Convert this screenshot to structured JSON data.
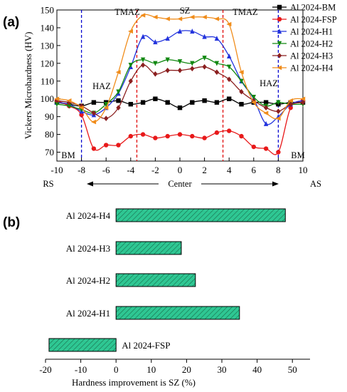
{
  "chart_data": [
    {
      "type": "line",
      "panel_label": "(a)",
      "xlabel": "",
      "ylabel": "Vickers Microhardness (HV)",
      "xlim": [
        -10,
        10
      ],
      "ylim": [
        65,
        150
      ],
      "x_ticks": [
        -10,
        -8,
        -6,
        -4,
        -2,
        0,
        2,
        4,
        6,
        8,
        10
      ],
      "y_ticks": [
        70,
        80,
        90,
        100,
        110,
        120,
        130,
        140,
        150
      ],
      "grid": false,
      "legend_placement": "top-right",
      "zone_lines": [
        {
          "x": -8,
          "color": "#0000d0"
        },
        {
          "x": -3.5,
          "color": "#e00000"
        },
        {
          "x": 3.5,
          "color": "#e00000"
        },
        {
          "x": 8,
          "color": "#0000d0"
        }
      ],
      "annotations": {
        "sz": "SZ",
        "tmaz_left": "TMAZ",
        "tmaz_right": "TMAZ",
        "haz_left": "HAZ",
        "haz_right": "HAZ",
        "bm_left": "BM",
        "bm_right": "BM",
        "rs": "RS",
        "as": "AS",
        "center": "Center"
      },
      "series": [
        {
          "name": "Al 2024-BM",
          "color": "#000000",
          "marker": "square",
          "x": [
            -10,
            -9,
            -8,
            -7,
            -6,
            -5,
            -4,
            -3,
            -2,
            -1,
            0,
            1,
            2,
            3,
            4,
            5,
            6,
            7,
            8,
            9,
            10
          ],
          "y": [
            98,
            97,
            96,
            98,
            98,
            99,
            97,
            98,
            100,
            98,
            95,
            98,
            99,
            98,
            100,
            97,
            98,
            98,
            97,
            98,
            98
          ]
        },
        {
          "name": "Al 2024-FSP",
          "color": "#e8191a",
          "marker": "circle",
          "x": [
            -10,
            -9,
            -8,
            -7,
            -6,
            -5,
            -4,
            -3,
            -2,
            -1,
            0,
            1,
            2,
            3,
            4,
            5,
            6,
            7,
            8,
            9,
            10
          ],
          "y": [
            99,
            96,
            91,
            72,
            74,
            74,
            79,
            80,
            78,
            79,
            80,
            79,
            78,
            81,
            82,
            79,
            73,
            72,
            70,
            95,
            99
          ]
        },
        {
          "name": "Al 2024-H1",
          "color": "#2233dd",
          "marker": "triangle-up",
          "x": [
            -10,
            -9,
            -8,
            -7,
            -6,
            -5,
            -4,
            -3,
            -2,
            -1,
            0,
            1,
            2,
            3,
            4,
            5,
            6,
            7,
            8,
            9,
            10
          ],
          "y": [
            98,
            97,
            93,
            91,
            95,
            103,
            118,
            135,
            132,
            134,
            138,
            138,
            135,
            134,
            124,
            110,
            100,
            86,
            90,
            97,
            99
          ]
        },
        {
          "name": "Al 2024-H2",
          "color": "#118811",
          "marker": "triangle-down",
          "x": [
            -10,
            -9,
            -8,
            -7,
            -6,
            -5,
            -4,
            -3,
            -2,
            -1,
            0,
            1,
            2,
            3,
            4,
            5,
            6,
            7,
            8,
            9,
            10
          ],
          "y": [
            97,
            96,
            94,
            92,
            97,
            104,
            119,
            122,
            120,
            122,
            121,
            120,
            123,
            120,
            118,
            110,
            101,
            96,
            98,
            97,
            97
          ]
        },
        {
          "name": "Al 2024-H3",
          "color": "#8b1f1f",
          "marker": "diamond",
          "x": [
            -10,
            -9,
            -8,
            -7,
            -6,
            -5,
            -4,
            -3,
            -2,
            -1,
            0,
            1,
            2,
            3,
            4,
            5,
            6,
            7,
            8,
            9,
            10
          ],
          "y": [
            99,
            98,
            96,
            92,
            89,
            95,
            110,
            119,
            114,
            116,
            116,
            117,
            118,
            115,
            111,
            104,
            99,
            95,
            93,
            97,
            98
          ]
        },
        {
          "name": "Al 2024-H4",
          "color": "#f08c1a",
          "marker": "triangle-left",
          "x": [
            -10,
            -9,
            -8,
            -7,
            -6,
            -5,
            -4,
            -3,
            -2,
            -1,
            0,
            1,
            2,
            3,
            4,
            5,
            6,
            7,
            8,
            9,
            10
          ],
          "y": [
            100,
            99,
            95,
            87,
            95,
            115,
            138,
            147,
            146,
            145,
            145,
            146,
            146,
            145,
            142,
            115,
            98,
            92,
            89,
            99,
            100
          ]
        }
      ]
    },
    {
      "type": "bar",
      "orientation": "horizontal",
      "panel_label": "(b)",
      "xlabel": "Hardness improvement is SZ (%)",
      "ylabel": "",
      "xlim": [
        -20,
        55
      ],
      "x_ticks": [
        -20,
        -10,
        0,
        10,
        20,
        30,
        40,
        50
      ],
      "grid": false,
      "bar_fill": "#2ec793",
      "bar_hatch": "diagonal",
      "categories": [
        "Al 2024-H4",
        "Al 2024-H3",
        "Al 2024-H2",
        "Al 2024-H1",
        "Al 2024-FSP"
      ],
      "values": [
        48,
        18.5,
        22.5,
        35,
        -19
      ]
    }
  ]
}
